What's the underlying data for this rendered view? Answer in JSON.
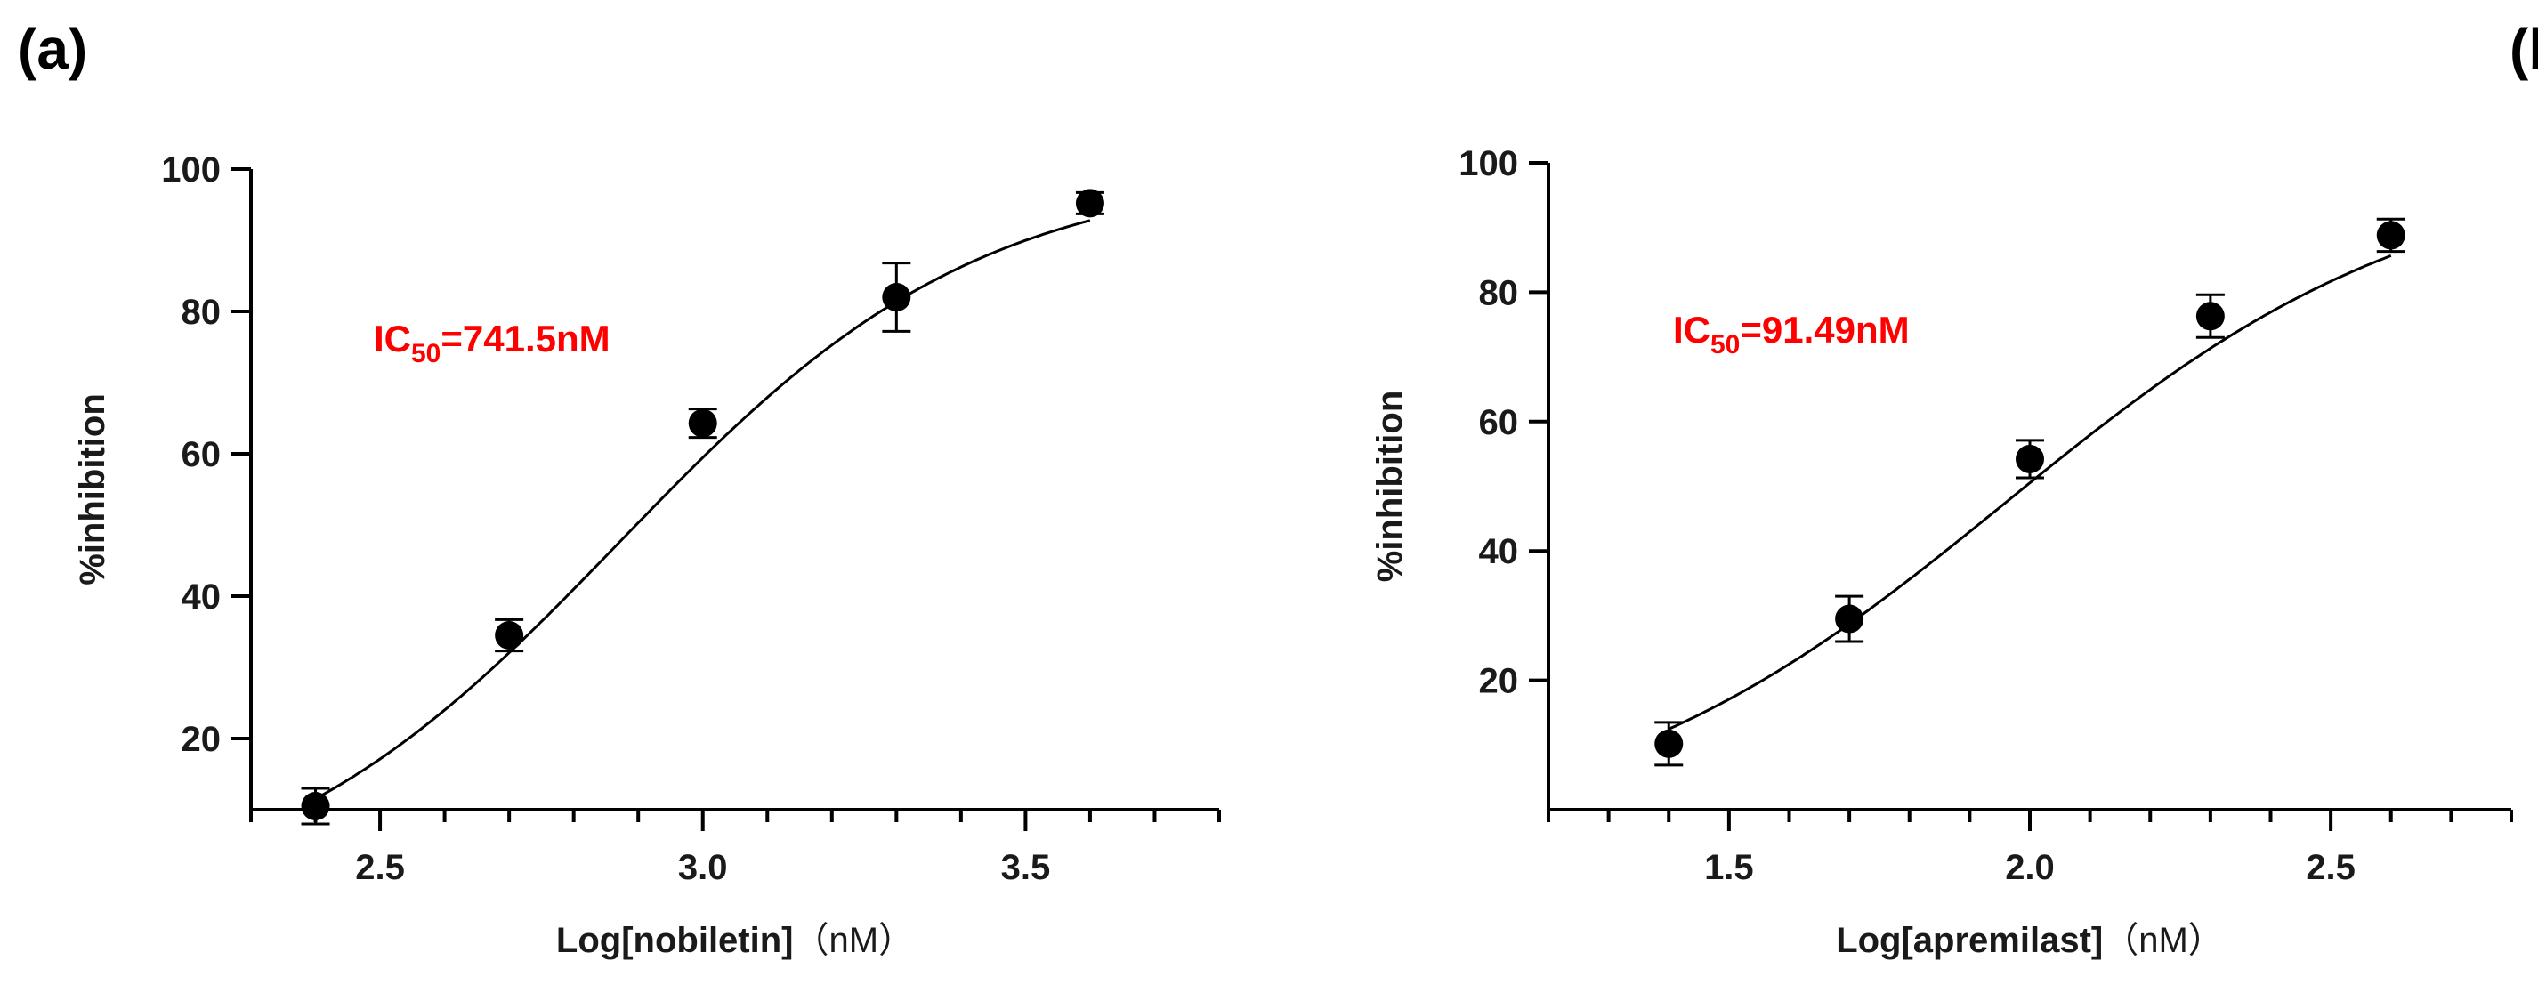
{
  "charts": {
    "a": {
      "panel_label": "(a)"
    },
    "b": {
      "panel_label": "(b)"
    }
  },
  "chart_data": [
    {
      "type": "scatter",
      "panel": "(a)",
      "title": "",
      "xlabel": "Log[nobiletin]",
      "xlabel_unit": "（nM）",
      "ylabel": "%inhibition",
      "xlim": [
        2.3,
        3.8
      ],
      "ylim": [
        10,
        100
      ],
      "x_ticks": [
        2.5,
        3.0,
        3.5
      ],
      "x_tick_labels": [
        "2.5",
        "3.0",
        "3.5"
      ],
      "y_ticks": [
        20,
        40,
        60,
        80,
        100
      ],
      "y_tick_labels": [
        "20",
        "40",
        "60",
        "80",
        "100"
      ],
      "annotation": {
        "text": "IC",
        "subscript": "50",
        "value": "=741.5nM",
        "color": "#ff0000"
      },
      "points": [
        {
          "x": 2.4,
          "y": 10.5,
          "err": 2.5
        },
        {
          "x": 2.7,
          "y": 34.5,
          "err": 2.2
        },
        {
          "x": 3.0,
          "y": 64.3,
          "err": 2.0
        },
        {
          "x": 3.3,
          "y": 82.0,
          "err": 4.8
        },
        {
          "x": 3.6,
          "y": 95.2,
          "err": 1.5
        }
      ],
      "fit": {
        "model": "4PL",
        "bottom": -5,
        "top": 100,
        "logIC50": 2.87,
        "hill": 1.55
      }
    },
    {
      "type": "scatter",
      "panel": "(b)",
      "title": "",
      "xlabel": "Log[apremilast]",
      "xlabel_unit": "（nM）",
      "ylabel": "%inhibition",
      "xlim": [
        1.2,
        2.8
      ],
      "ylim": [
        0,
        100
      ],
      "x_ticks": [
        1.5,
        2.0,
        2.5
      ],
      "x_tick_labels": [
        "1.5",
        "2.0",
        "2.5"
      ],
      "y_ticks": [
        20,
        40,
        60,
        80,
        100
      ],
      "y_tick_labels": [
        "20",
        "40",
        "60",
        "80",
        "100"
      ],
      "annotation": {
        "text": "IC",
        "subscript": "50",
        "value": "=91.49nM",
        "color": "#ff0000"
      },
      "points": [
        {
          "x": 1.4,
          "y": 10.2,
          "err": 3.3
        },
        {
          "x": 1.7,
          "y": 29.5,
          "err": 3.5
        },
        {
          "x": 2.0,
          "y": 54.2,
          "err": 2.9
        },
        {
          "x": 2.3,
          "y": 76.3,
          "err": 3.3
        },
        {
          "x": 2.6,
          "y": 88.8,
          "err": 2.5
        }
      ],
      "fit": {
        "model": "4PL",
        "bottom": -5,
        "top": 100,
        "logIC50": 1.96,
        "hill": 1.25
      }
    }
  ]
}
